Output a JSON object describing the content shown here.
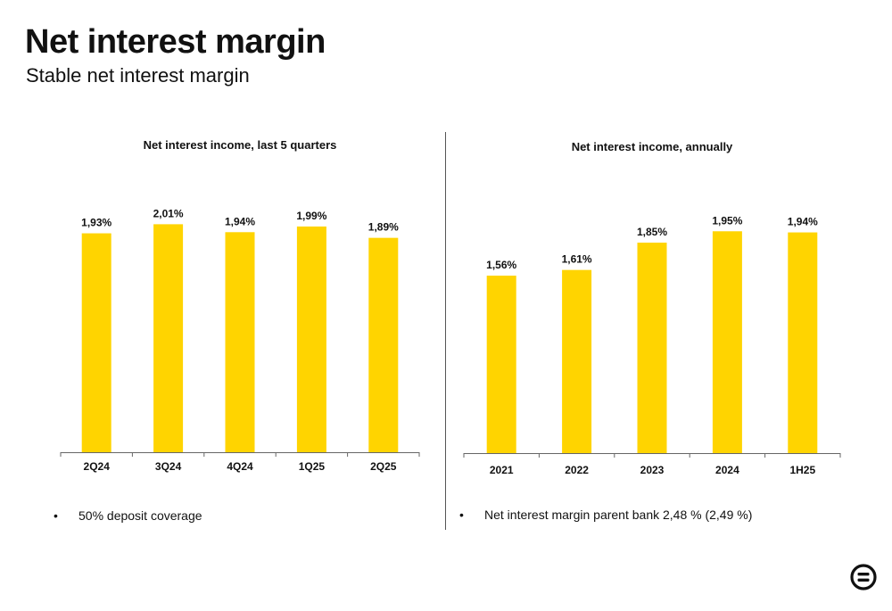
{
  "header": {
    "title": "Net interest margin",
    "subtitle": "Stable net interest margin"
  },
  "bullets": {
    "left": "50% deposit coverage",
    "right": "Net interest margin parent bank 2,48 % (2,49 %)",
    "marker": "•"
  },
  "colors": {
    "bar": "#FFD400",
    "axis": "#666666"
  },
  "logo": {
    "icon": "brand-logo-icon"
  },
  "chart_data": [
    {
      "type": "bar",
      "title": "Net interest income, last 5 quarters",
      "categories": [
        "2Q24",
        "3Q24",
        "4Q24",
        "1Q25",
        "2Q25"
      ],
      "values": [
        1.93,
        2.01,
        1.94,
        1.99,
        1.89
      ],
      "labels": [
        "1,93%",
        "2,01%",
        "1,94%",
        "1,99%",
        "1,89%"
      ],
      "ylim": [
        0,
        2.65
      ],
      "grid": false,
      "legend": "none"
    },
    {
      "type": "bar",
      "title": "Net interest income, annually",
      "categories": [
        "2021",
        "2022",
        "2023",
        "2024",
        "1H25"
      ],
      "values": [
        1.56,
        1.61,
        1.85,
        1.95,
        1.94
      ],
      "labels": [
        "1,56%",
        "1,61%",
        "1,85%",
        "1,95%",
        "1,94%"
      ],
      "ylim": [
        0,
        2.65
      ],
      "grid": false,
      "legend": "none"
    }
  ]
}
